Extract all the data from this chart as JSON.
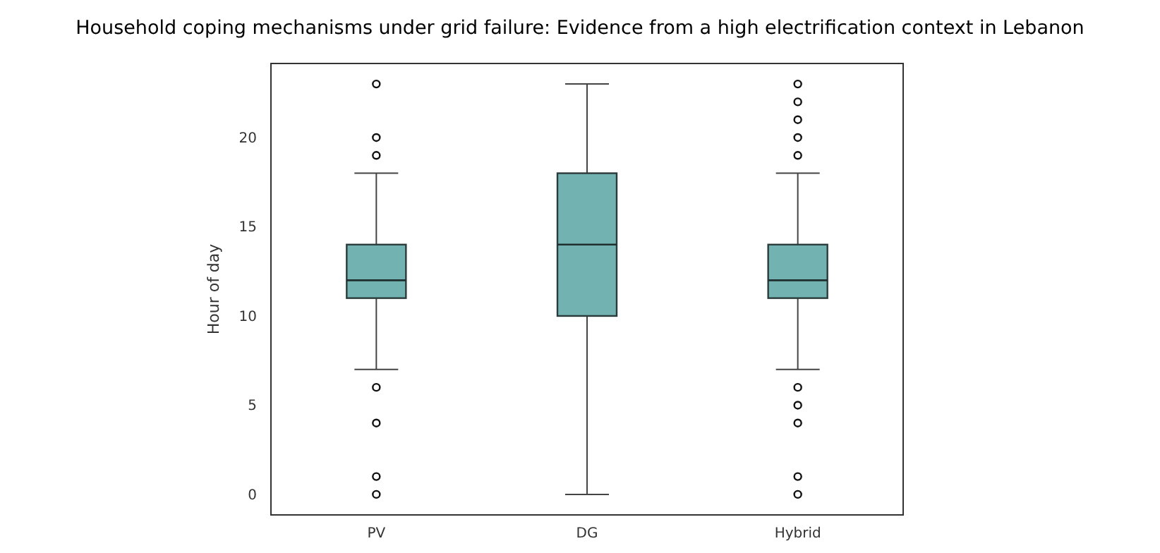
{
  "chart_data": {
    "type": "box",
    "title": "Household coping mechanisms under grid failure: Evidence from a high electrification context in Lebanon",
    "ylabel": "Hour of day",
    "categories": [
      "PV",
      "DG",
      "Hybrid"
    ],
    "ylim": [
      -1.15,
      24.15
    ],
    "yticks": [
      0,
      5,
      10,
      15,
      20
    ],
    "grid": false,
    "series": [
      {
        "color": "#72b2b0",
        "boxes": [
          {
            "low": 7,
            "q1": 11,
            "median": 12,
            "q3": 14,
            "high": 18,
            "outliers": [
              0,
              1,
              4,
              6,
              19,
              20,
              23
            ]
          },
          {
            "low": 0,
            "q1": 10,
            "median": 14,
            "q3": 18,
            "high": 23
          },
          {
            "low": 7,
            "q1": 11,
            "median": 12,
            "q3": 14,
            "high": 18,
            "outliers": [
              0,
              1,
              4,
              5,
              6,
              19,
              20,
              21,
              22,
              23
            ]
          }
        ]
      }
    ]
  }
}
